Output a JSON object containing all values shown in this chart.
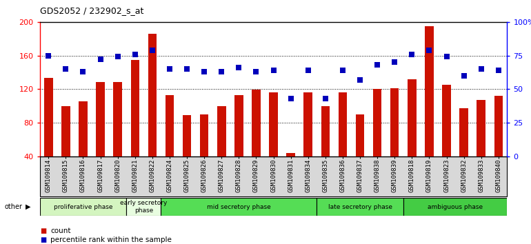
{
  "title": "GDS2052 / 232902_s_at",
  "samples": [
    "GSM109814",
    "GSM109815",
    "GSM109816",
    "GSM109817",
    "GSM109820",
    "GSM109821",
    "GSM109822",
    "GSM109824",
    "GSM109825",
    "GSM109826",
    "GSM109827",
    "GSM109828",
    "GSM109829",
    "GSM109830",
    "GSM109831",
    "GSM109834",
    "GSM109835",
    "GSM109836",
    "GSM109837",
    "GSM109838",
    "GSM109839",
    "GSM109818",
    "GSM109819",
    "GSM109823",
    "GSM109832",
    "GSM109833",
    "GSM109840"
  ],
  "counts": [
    133,
    100,
    105,
    128,
    128,
    155,
    186,
    113,
    89,
    90,
    100,
    113,
    119,
    116,
    44,
    116,
    100,
    116,
    90,
    120,
    121,
    132,
    195,
    125,
    97,
    107,
    112
  ],
  "percentiles": [
    75,
    65,
    63,
    72,
    74,
    76,
    79,
    65,
    65,
    63,
    63,
    66,
    63,
    64,
    43,
    64,
    43,
    64,
    57,
    68,
    70,
    76,
    79,
    74,
    60,
    65,
    64
  ],
  "ylim_left": [
    40,
    200
  ],
  "ylim_right": [
    0,
    100
  ],
  "yticks_left": [
    40,
    80,
    120,
    160,
    200
  ],
  "yticks_right": [
    0,
    25,
    50,
    75,
    100
  ],
  "ytick_labels_right": [
    "0",
    "25",
    "50",
    "75",
    "100%"
  ],
  "bar_color": "#cc1100",
  "dot_color": "#0000bb",
  "phases": [
    {
      "label": "proliferative phase",
      "start": 0,
      "end": 5,
      "color": "#d4f5c0"
    },
    {
      "label": "early secretory\nphase",
      "start": 5,
      "end": 7,
      "color": "#e8fde0"
    },
    {
      "label": "mid secretory phase",
      "start": 7,
      "end": 16,
      "color": "#55dd55"
    },
    {
      "label": "late secretory phase",
      "start": 16,
      "end": 21,
      "color": "#55dd55"
    },
    {
      "label": "ambiguous phase",
      "start": 21,
      "end": 27,
      "color": "#44cc44"
    }
  ],
  "other_label": "other",
  "legend_count": "count",
  "legend_percentile": "percentile rank within the sample",
  "dot_size": 40,
  "bar_width": 0.5
}
